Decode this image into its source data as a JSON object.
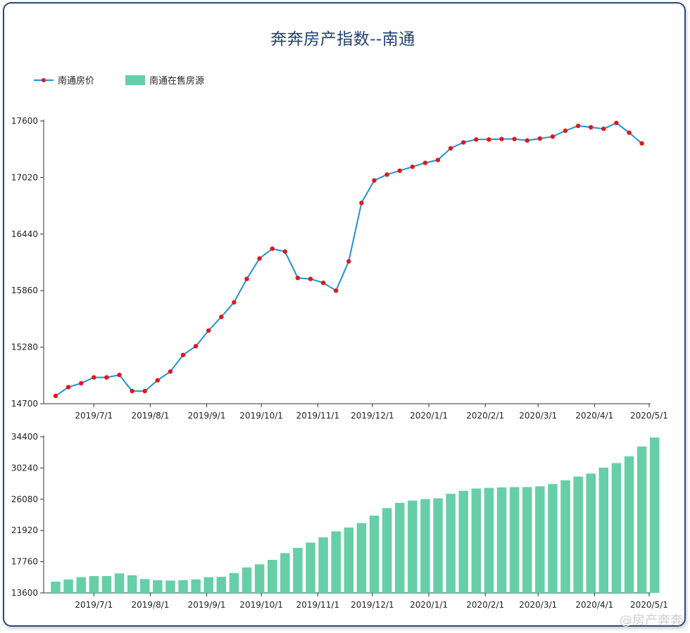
{
  "chart_data": [
    {
      "type": "line",
      "title": "奔奔房产指数--南通",
      "series": [
        {
          "name": "南通房价",
          "values": [
            14780,
            14870,
            14910,
            14970,
            14970,
            14995,
            14830,
            14830,
            14940,
            15030,
            15200,
            15290,
            15450,
            15590,
            15740,
            15980,
            16190,
            16290,
            16260,
            15990,
            15980,
            15940,
            15860,
            16160,
            16760,
            16990,
            17050,
            17090,
            17130,
            17170,
            17200,
            17320,
            17380,
            17410,
            17410,
            17415,
            17415,
            17400,
            17420,
            17440,
            17500,
            17550,
            17535,
            17520,
            17580,
            17480,
            17370
          ]
        }
      ],
      "x_ticks": [
        "2019/7/1",
        "2019/8/1",
        "2019/9/1",
        "2019/10/1",
        "2019/11/1",
        "2019/12/1",
        "2020/1/1",
        "2020/2/1",
        "2020/3/1",
        "2020/4/1",
        "2020/5/1"
      ],
      "y_ticks": [
        "17600",
        "17020",
        "16440",
        "15860",
        "15280",
        "14700"
      ],
      "ylim": [
        14700,
        17600
      ],
      "color": "#1f93d0",
      "marker_color": "#e8141a"
    },
    {
      "type": "bar",
      "series": [
        {
          "name": "南通在售房源",
          "values": [
            15100,
            15400,
            15700,
            15850,
            15850,
            16200,
            15950,
            15450,
            15300,
            15250,
            15300,
            15400,
            15700,
            15750,
            16250,
            17000,
            17400,
            18000,
            18900,
            19600,
            20300,
            21000,
            21800,
            22300,
            22900,
            23900,
            24900,
            25600,
            25900,
            26100,
            26200,
            26800,
            27200,
            27500,
            27600,
            27650,
            27700,
            27700,
            27800,
            28100,
            28600,
            29100,
            29500,
            30300,
            30900,
            31800,
            33100,
            34300
          ]
        }
      ],
      "x_ticks": [
        "2019/7/1",
        "2019/8/1",
        "2019/9/1",
        "2019/10/1",
        "2019/11/1",
        "2019/12/1",
        "2020/1/1",
        "2020/2/1",
        "2020/3/1",
        "2020/4/1",
        "2020/5/1"
      ],
      "y_ticks": [
        "34400",
        "30240",
        "26080",
        "21920",
        "17760",
        "13600"
      ],
      "ylim": [
        13600,
        34400
      ],
      "color": "#66cfa8"
    }
  ],
  "legend": {
    "line_label": "南通房价",
    "bar_label": "南通在售房源"
  },
  "watermark": "@房产奔奔"
}
